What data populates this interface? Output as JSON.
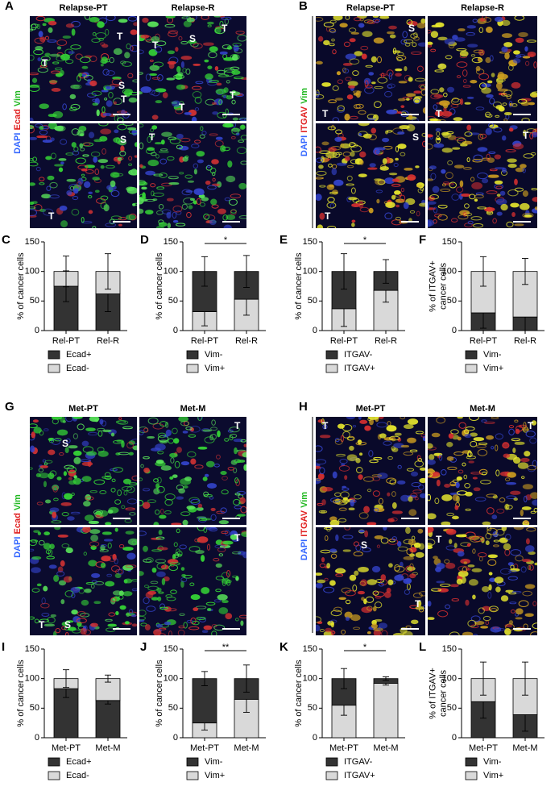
{
  "image_panels": [
    {
      "letter": "A",
      "stain": [
        "DAPI",
        "Ecad",
        "Vim"
      ],
      "columns": [
        "Relapse-PT",
        "Relapse-R"
      ],
      "tiles": [
        [
          "T",
          "T",
          "S",
          "T"
        ],
        [
          "T",
          "S",
          "T",
          "T",
          "T"
        ],
        [
          "S",
          "T"
        ],
        [
          "T"
        ]
      ]
    },
    {
      "letter": "B",
      "stain": [
        "DAPI",
        "ITGAV",
        "Vim"
      ],
      "columns": [
        "Relapse-PT",
        "Relapse-R"
      ],
      "tiles": [
        [
          "S",
          "T"
        ],
        [
          "T"
        ],
        [
          "S",
          "T"
        ],
        [
          "T"
        ]
      ]
    },
    {
      "letter": "G",
      "stain": [
        "DAPI",
        "Ecad",
        "Vim"
      ],
      "columns": [
        "Met-PT",
        "Met-M"
      ],
      "tiles": [
        [
          "S"
        ],
        [
          "T"
        ],
        [
          "T",
          "S"
        ],
        [
          "T"
        ]
      ]
    },
    {
      "letter": "H",
      "stain": [
        "DAPI",
        "ITGAV",
        "Vim"
      ],
      "columns": [
        "Met-PT",
        "Met-M"
      ],
      "tiles": [
        [
          "T"
        ],
        [
          "T"
        ],
        [
          "S",
          "T"
        ],
        [
          "T"
        ]
      ]
    }
  ],
  "chart_data": [
    {
      "type": "stacked_bar",
      "letter": "C",
      "ylabel": [
        "% of cancer cells"
      ],
      "categories": [
        "Rel-PT",
        "Rel-R"
      ],
      "ylim": [
        0,
        150
      ],
      "yticks": [
        0,
        50,
        100,
        150
      ],
      "series": [
        {
          "name": "Ecad+",
          "color": "#333333",
          "values": [
            75,
            62
          ],
          "errors": [
            26,
            30
          ]
        },
        {
          "name": "Ecad-",
          "color": "#d9d9d9",
          "values": [
            25,
            38
          ],
          "errors": [
            26,
            30
          ]
        }
      ]
    },
    {
      "type": "stacked_bar",
      "letter": "D",
      "ylabel": [
        "% of cancer cells"
      ],
      "categories": [
        "Rel-PT",
        "Rel-R"
      ],
      "ylim": [
        0,
        150
      ],
      "yticks": [
        0,
        50,
        100,
        150
      ],
      "significance": "*",
      "series": [
        {
          "name": "Vim-",
          "color": "#333333",
          "values": [
            68,
            47
          ],
          "errors": [
            25,
            27
          ]
        },
        {
          "name": "Vim+",
          "color": "#d9d9d9",
          "values": [
            32,
            53
          ],
          "errors": [
            24,
            27
          ]
        }
      ],
      "stack": [
        1,
        0
      ]
    },
    {
      "type": "stacked_bar",
      "letter": "E",
      "ylabel": [
        "% of cancer cells"
      ],
      "categories": [
        "Rel-PT",
        "Rel-R"
      ],
      "ylim": [
        0,
        150
      ],
      "yticks": [
        0,
        50,
        100,
        150
      ],
      "significance": "*",
      "series": [
        {
          "name": "ITGAV-",
          "color": "#333333",
          "values": [
            63,
            32
          ],
          "errors": [
            30,
            20
          ]
        },
        {
          "name": "ITGAV+",
          "color": "#d9d9d9",
          "values": [
            37,
            68
          ],
          "errors": [
            30,
            20
          ]
        }
      ],
      "stack": [
        1,
        0
      ]
    },
    {
      "type": "stacked_bar",
      "letter": "F",
      "ylabel": [
        "% of ITGAV+",
        "cancer cells"
      ],
      "categories": [
        "Rel-PT",
        "Rel-R"
      ],
      "ylim": [
        0,
        150
      ],
      "yticks": [
        0,
        50,
        100,
        150
      ],
      "series": [
        {
          "name": "Vim-",
          "color": "#333333",
          "values": [
            30,
            23
          ],
          "errors": [
            26,
            23
          ]
        },
        {
          "name": "Vim+",
          "color": "#d9d9d9",
          "values": [
            70,
            77
          ],
          "errors": [
            25,
            22
          ]
        }
      ]
    },
    {
      "type": "stacked_bar",
      "letter": "I",
      "ylabel": [
        "% of cancer cells"
      ],
      "categories": [
        "Met-PT",
        "Met-M"
      ],
      "ylim": [
        0,
        150
      ],
      "yticks": [
        0,
        50,
        100,
        150
      ],
      "series": [
        {
          "name": "Ecad+",
          "color": "#333333",
          "values": [
            83,
            63
          ],
          "errors": [
            15,
            6
          ]
        },
        {
          "name": "Ecad-",
          "color": "#d9d9d9",
          "values": [
            17,
            37
          ],
          "errors": [
            15,
            6
          ]
        }
      ]
    },
    {
      "type": "stacked_bar",
      "letter": "J",
      "ylabel": [
        "% of cancer cells"
      ],
      "categories": [
        "Met-PT",
        "Met-M"
      ],
      "ylim": [
        0,
        150
      ],
      "yticks": [
        0,
        50,
        100,
        150
      ],
      "significance": "**",
      "series": [
        {
          "name": "Vim-",
          "color": "#333333",
          "values": [
            75,
            35
          ],
          "errors": [
            12,
            23
          ]
        },
        {
          "name": "Vim+",
          "color": "#d9d9d9",
          "values": [
            25,
            65
          ],
          "errors": [
            12,
            22
          ]
        }
      ],
      "stack": [
        1,
        0
      ]
    },
    {
      "type": "stacked_bar",
      "letter": "K",
      "ylabel": [
        "% of cancer cells"
      ],
      "categories": [
        "Met-PT",
        "Met-M"
      ],
      "ylim": [
        0,
        150
      ],
      "yticks": [
        0,
        50,
        100,
        150
      ],
      "significance": "*",
      "series": [
        {
          "name": "ITGAV-",
          "color": "#333333",
          "values": [
            45,
            8
          ],
          "errors": [
            17,
            3
          ]
        },
        {
          "name": "ITGAV+",
          "color": "#d9d9d9",
          "values": [
            55,
            92
          ],
          "errors": [
            17,
            3
          ]
        }
      ],
      "stack": [
        1,
        0
      ]
    },
    {
      "type": "stacked_bar",
      "letter": "L",
      "ylabel": [
        "% of ITGAV+",
        "cancer cells"
      ],
      "categories": [
        "Met-PT",
        "Met-M"
      ],
      "ylim": [
        0,
        150
      ],
      "yticks": [
        0,
        50,
        100,
        150
      ],
      "series": [
        {
          "name": "Vim-",
          "color": "#333333",
          "values": [
            61,
            39
          ],
          "errors": [
            28,
            28
          ]
        },
        {
          "name": "Vim+",
          "color": "#d9d9d9",
          "values": [
            39,
            61
          ],
          "errors": [
            28,
            28
          ]
        }
      ]
    }
  ]
}
